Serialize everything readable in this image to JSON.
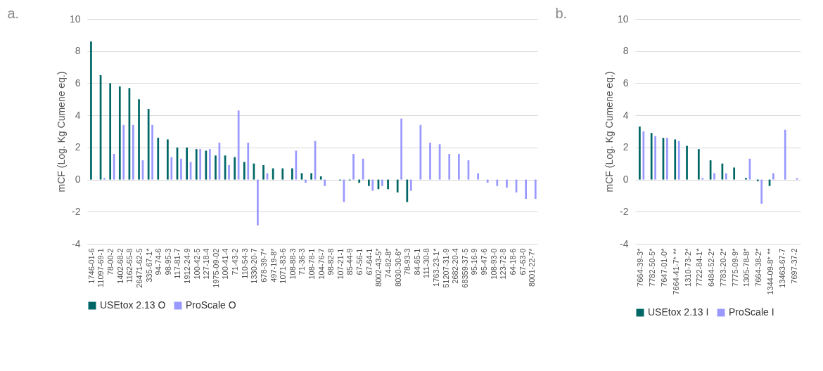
{
  "chart_data": [
    {
      "type": "bar",
      "title": "a.",
      "ylabel": "mCF (Log. Kg Cumene eq.)",
      "categories": [
        "1746-01-6",
        "11097-69-1",
        "78-00-2",
        "1402-68-2",
        "1162-65-8",
        "26471-62-5",
        "335-67-1*",
        "94-74-6",
        "98-95-3",
        "117-81-7",
        "1912-24-9",
        "100-42-5",
        "127-18-4",
        "1975-09-02",
        "100-41-4",
        "71-43-2",
        "110-54-3",
        "1330-20-7",
        "678-39-7*",
        "497-19-8*",
        "1071-83-6",
        "108-88-3",
        "71-36-3",
        "108-78-1",
        "104-76-7",
        "98-82-8",
        "107-21-1",
        "85-44-9",
        "67-56-1",
        "67-64-1",
        "8002-43-5*",
        "74-82-8*",
        "8030-30-6*",
        "78-93-3",
        "84-65-1",
        "111-30-8",
        "1763-23-1*",
        "51207-31-9",
        "2682-20-4",
        "68359-37-5",
        "95-16-9",
        "95-47-6",
        "108-93-0",
        "123-72-8",
        "64-18-6",
        "67-63-0",
        "8001-22-7*"
      ],
      "series": [
        {
          "name": "USEtox 2.13 O",
          "color": "#006666",
          "values": [
            8.6,
            6.5,
            6.0,
            5.8,
            5.7,
            5.0,
            4.4,
            2.6,
            2.5,
            2.0,
            2.0,
            1.9,
            1.8,
            1.5,
            1.5,
            1.4,
            1.1,
            1.0,
            0.9,
            0.7,
            0.7,
            0.7,
            0.4,
            0.4,
            0.2,
            null,
            -0.05,
            -0.05,
            -0.2,
            -0.4,
            -0.6,
            -0.6,
            -0.8,
            -1.4,
            null,
            null,
            null,
            null,
            null,
            null,
            null,
            null,
            null,
            null,
            null,
            null,
            null
          ]
        },
        {
          "name": "ProScale O",
          "color": "#9999ff",
          "values": [
            null,
            0.1,
            1.6,
            3.4,
            3.4,
            1.2,
            3.4,
            null,
            1.4,
            1.3,
            1.1,
            1.9,
            1.9,
            2.3,
            0.9,
            4.3,
            2.3,
            -2.85,
            0.4,
            null,
            null,
            1.8,
            -0.2,
            2.4,
            -0.4,
            null,
            -1.4,
            1.6,
            1.3,
            -0.7,
            -0.4,
            null,
            3.8,
            -0.7,
            3.4,
            2.3,
            2.2,
            1.6,
            1.6,
            1.2,
            0.4,
            -0.2,
            -0.4,
            -0.5,
            -0.8,
            -1.2,
            -1.2
          ]
        }
      ],
      "ylim": [
        -4,
        10
      ],
      "yticks": [
        -4,
        -2,
        0,
        2,
        4,
        6,
        8,
        10
      ],
      "grid": "y",
      "legend": "bottom"
    },
    {
      "type": "bar",
      "title": "b.",
      "ylabel": "mCF (Log. Kg Cumene eq.)",
      "categories": [
        "7664-39-3*",
        "7782-50-5*",
        "7647-01-0*",
        "7664-41-7* **",
        "1310-73-2*",
        "7722-84-1*",
        "6484-52-2*",
        "7783-20-2*",
        "7775-09-9*",
        "1305-78-8*",
        "7664-38-2*",
        "1344-09-8* **",
        "13463-67-7",
        "7697-37-2"
      ],
      "series": [
        {
          "name": "USEtox 2.13 I",
          "color": "#006666",
          "values": [
            3.3,
            2.9,
            2.6,
            2.5,
            2.1,
            1.9,
            1.2,
            1.0,
            0.75,
            0.1,
            -0.1,
            -0.4,
            null,
            null
          ]
        },
        {
          "name": "ProScale I",
          "color": "#9999ff",
          "values": [
            3.0,
            2.7,
            2.6,
            2.4,
            null,
            0.1,
            0.4,
            0.4,
            null,
            1.3,
            -1.5,
            0.4,
            3.1,
            0.1
          ]
        }
      ],
      "ylim": [
        -4,
        10
      ],
      "yticks": [
        -4,
        -2,
        0,
        2,
        4,
        6,
        8,
        10
      ],
      "grid": "y",
      "legend": "bottom"
    }
  ]
}
